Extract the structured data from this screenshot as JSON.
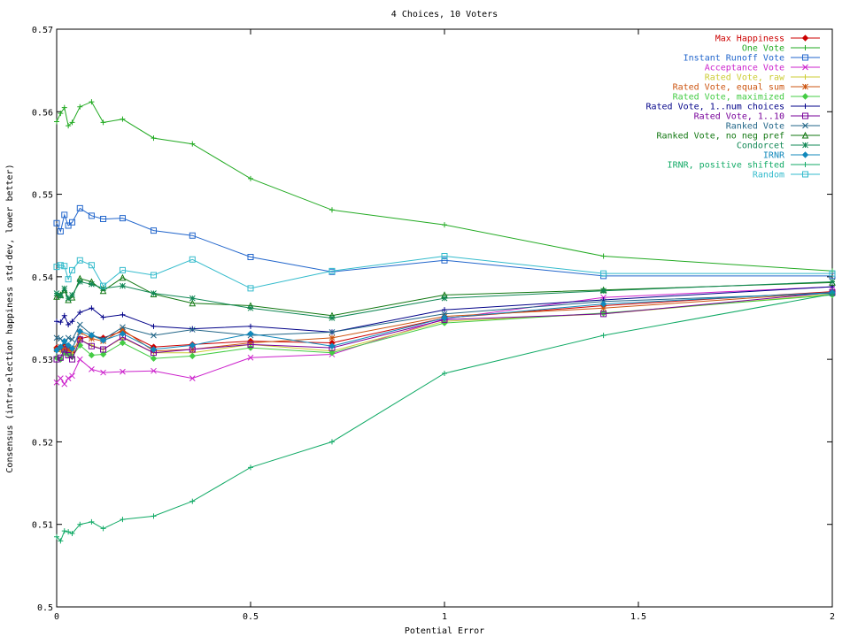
{
  "chart_data": {
    "type": "line",
    "title": "4 Choices, 10 Voters",
    "xlabel": "Potential Error",
    "ylabel": "Consensus (intra-election happiness std-dev, lower better)",
    "xlim": [
      0,
      2
    ],
    "ylim": [
      0.5,
      0.57
    ],
    "xticks": [
      0,
      0.5,
      1,
      1.5,
      2
    ],
    "xtick_labels": [
      "0",
      "0.5",
      "1",
      "1.5",
      "2"
    ],
    "yticks": [
      0.5,
      0.51,
      0.52,
      0.53,
      0.54,
      0.55,
      0.56,
      0.57
    ],
    "ytick_labels": [
      "0.5",
      "0.51",
      "0.52",
      "0.53",
      "0.54",
      "0.55",
      "0.56",
      "0.57"
    ],
    "legend_position": "top-right",
    "x": [
      0,
      0.01,
      0.02,
      0.03,
      0.04,
      0.06,
      0.09,
      0.12,
      0.17,
      0.25,
      0.35,
      0.5,
      0.71,
      1,
      1.41,
      2
    ],
    "series": [
      {
        "name": "Max Happiness",
        "color": "#cc0000",
        "marker": "diamond",
        "values": [
          0.5314,
          0.5312,
          0.5316,
          0.5313,
          0.5308,
          0.5325,
          0.5328,
          0.5326,
          0.5334,
          0.5315,
          0.5318,
          0.5322,
          0.532,
          0.535,
          0.5365,
          0.5382
        ]
      },
      {
        "name": "One Vote",
        "color": "#22aa22",
        "marker": "plus",
        "values": [
          0.5588,
          0.5598,
          0.5605,
          0.5583,
          0.5587,
          0.5606,
          0.5612,
          0.5587,
          0.5591,
          0.5568,
          0.5561,
          0.5519,
          0.5481,
          0.5463,
          0.5425,
          0.5407
        ]
      },
      {
        "name": "Instant Runoff Vote",
        "color": "#2266cc",
        "marker": "square",
        "values": [
          0.5465,
          0.5455,
          0.5475,
          0.5462,
          0.5466,
          0.5483,
          0.5474,
          0.547,
          0.5471,
          0.5456,
          0.545,
          0.5424,
          0.5406,
          0.542,
          0.5401,
          0.5401
        ]
      },
      {
        "name": "Acceptance Vote",
        "color": "#cc22cc",
        "marker": "x",
        "values": [
          0.5272,
          0.5277,
          0.527,
          0.5277,
          0.528,
          0.53,
          0.5288,
          0.5284,
          0.5285,
          0.5286,
          0.5277,
          0.5302,
          0.5306,
          0.5349,
          0.5375,
          0.5388
        ]
      },
      {
        "name": "Rated Vote, raw",
        "color": "#cccc33",
        "marker": "plus",
        "values": [
          0.5312,
          0.531,
          0.5314,
          0.5312,
          0.5307,
          0.5324,
          0.5317,
          0.5312,
          0.5326,
          0.5308,
          0.5308,
          0.5318,
          0.531,
          0.5346,
          0.5355,
          0.5379
        ]
      },
      {
        "name": "Rated Vote, equal sum",
        "color": "#cc5511",
        "marker": "star",
        "values": [
          0.5312,
          0.5315,
          0.5313,
          0.5311,
          0.5313,
          0.5333,
          0.5325,
          0.5322,
          0.5336,
          0.531,
          0.5312,
          0.532,
          0.5326,
          0.5352,
          0.5362,
          0.5381
        ]
      },
      {
        "name": "Rated Vote, maximized",
        "color": "#44cc44",
        "marker": "diamond",
        "values": [
          0.5302,
          0.53,
          0.5308,
          0.5306,
          0.5303,
          0.5317,
          0.5305,
          0.5306,
          0.532,
          0.5301,
          0.5304,
          0.5314,
          0.5308,
          0.5344,
          0.5356,
          0.5378
        ]
      },
      {
        "name": "Rated Vote, 1..num choices",
        "color": "#000088",
        "marker": "plus",
        "values": [
          0.5346,
          0.5345,
          0.5353,
          0.5342,
          0.5346,
          0.5357,
          0.5362,
          0.5351,
          0.5354,
          0.534,
          0.5337,
          0.534,
          0.5333,
          0.536,
          0.5372,
          0.5388
        ]
      },
      {
        "name": "Rated Vote, 1..10",
        "color": "#770099",
        "marker": "square",
        "values": [
          0.53,
          0.5302,
          0.5312,
          0.5305,
          0.53,
          0.5324,
          0.5316,
          0.5312,
          0.5327,
          0.5308,
          0.5312,
          0.5318,
          0.5314,
          0.5348,
          0.5355,
          0.5381
        ]
      },
      {
        "name": "Ranked Vote",
        "color": "#226688",
        "marker": "x",
        "values": [
          0.5326,
          0.5325,
          0.532,
          0.5326,
          0.5324,
          0.5342,
          0.533,
          0.5324,
          0.5339,
          0.5329,
          0.5336,
          0.5329,
          0.5333,
          0.5355,
          0.537,
          0.538
        ]
      },
      {
        "name": "Ranked Vote, no neg pref",
        "color": "#117711",
        "marker": "triangle",
        "values": [
          0.5376,
          0.5378,
          0.5384,
          0.5372,
          0.5375,
          0.5398,
          0.5394,
          0.5383,
          0.5399,
          0.5379,
          0.5368,
          0.5365,
          0.5353,
          0.5378,
          0.5384,
          0.5393
        ]
      },
      {
        "name": "Condorcet",
        "color": "#118855",
        "marker": "star",
        "values": [
          0.538,
          0.5377,
          0.5386,
          0.5374,
          0.5378,
          0.5394,
          0.5391,
          0.5386,
          0.5389,
          0.538,
          0.5374,
          0.5362,
          0.535,
          0.5374,
          0.5383,
          0.5394
        ]
      },
      {
        "name": "IRNR",
        "color": "#1188bb",
        "marker": "diamond",
        "values": [
          0.5311,
          0.5315,
          0.5322,
          0.5317,
          0.5313,
          0.5334,
          0.5329,
          0.5323,
          0.5331,
          0.5312,
          0.5317,
          0.5331,
          0.5316,
          0.535,
          0.5367,
          0.5381
        ]
      },
      {
        "name": "IRNR, positive shifted",
        "color": "#11aa66",
        "marker": "plus",
        "values": [
          0.5085,
          0.508,
          0.5092,
          0.5091,
          0.5089,
          0.51,
          0.5103,
          0.5095,
          0.5106,
          0.511,
          0.5128,
          0.5169,
          0.52,
          0.5283,
          0.5329,
          0.5379
        ]
      },
      {
        "name": "Random",
        "color": "#33bbcc",
        "marker": "square",
        "values": [
          0.5412,
          0.5414,
          0.5413,
          0.5397,
          0.5408,
          0.542,
          0.5414,
          0.5389,
          0.5408,
          0.5402,
          0.5421,
          0.5386,
          0.5407,
          0.5425,
          0.5404,
          0.5404
        ]
      }
    ]
  }
}
